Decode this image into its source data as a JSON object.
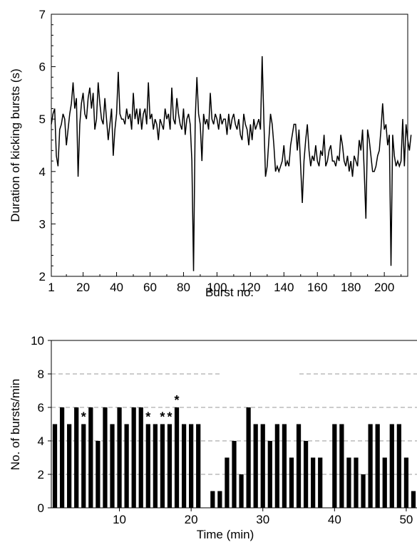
{
  "chart_data": [
    {
      "type": "line",
      "xlabel": "Burst no.",
      "ylabel": "Duration of kicking bursts (s)",
      "xlim": [
        1,
        214
      ],
      "ylim": [
        2,
        7
      ],
      "x_ticks": [
        "1",
        "20",
        "40",
        "60",
        "80",
        "100",
        "120",
        "140",
        "160",
        "180",
        "200"
      ],
      "y_ticks": [
        "2",
        "3",
        "4",
        "5",
        "6",
        "7"
      ],
      "grid": false,
      "series": [
        {
          "color": "#000000",
          "values": [
            4.9,
            5.1,
            5.2,
            4.3,
            4.1,
            4.8,
            4.9,
            5.1,
            5.0,
            4.5,
            4.8,
            5.1,
            5.3,
            5.7,
            5.2,
            5.4,
            3.9,
            4.9,
            5.3,
            5.5,
            5.1,
            5.0,
            5.4,
            5.6,
            5.2,
            5.5,
            4.8,
            5.0,
            5.7,
            5.3,
            5.0,
            4.9,
            5.4,
            5.0,
            4.6,
            4.9,
            5.2,
            4.3,
            4.8,
            5.1,
            5.9,
            5.1,
            5.0,
            5.0,
            4.9,
            5.2,
            5.0,
            5.1,
            4.8,
            5.5,
            5.0,
            5.2,
            4.9,
            5.2,
            4.8,
            5.1,
            5.2,
            4.9,
            5.7,
            5.0,
            5.1,
            4.8,
            5.0,
            4.9,
            4.6,
            5.0,
            4.9,
            4.8,
            5.2,
            5.0,
            5.1,
            4.8,
            5.6,
            5.0,
            4.9,
            5.4,
            5.1,
            4.9,
            4.8,
            5.2,
            4.7,
            5.0,
            5.1,
            4.9,
            4.2,
            2.1,
            5.0,
            5.8,
            5.1,
            4.9,
            4.2,
            5.1,
            4.9,
            5.0,
            4.8,
            5.5,
            5.0,
            4.9,
            5.1,
            5.0,
            4.8,
            5.1,
            4.9,
            5.0,
            5.0,
            4.7,
            5.1,
            4.8,
            5.0,
            5.1,
            4.9,
            4.8,
            5.0,
            4.7,
            4.6,
            5.1,
            4.9,
            4.8,
            4.5,
            4.9,
            4.6,
            5.0,
            4.8,
            4.9,
            5.0,
            4.8,
            6.2,
            5.0,
            3.9,
            4.1,
            4.6,
            5.1,
            4.9,
            4.5,
            4.0,
            4.1,
            4.0,
            4.1,
            4.2,
            4.5,
            4.1,
            4.2,
            4.1,
            4.5,
            4.7,
            4.9,
            4.9,
            4.4,
            4.8,
            4.1,
            3.4,
            4.2,
            4.6,
            4.9,
            4.4,
            4.1,
            4.3,
            4.2,
            4.5,
            4.2,
            4.1,
            4.4,
            4.3,
            4.7,
            4.1,
            4.2,
            4.4,
            4.5,
            4.2,
            4.2,
            4.1,
            4.3,
            4.2,
            4.7,
            4.5,
            4.2,
            4.1,
            4.3,
            4.0,
            4.2,
            3.9,
            4.3,
            4.2,
            4.1,
            4.6,
            4.4,
            4.8,
            4.0,
            3.1,
            4.8,
            4.6,
            4.3,
            4.0,
            4.0,
            4.1,
            4.3,
            4.4,
            4.8,
            5.3,
            4.8,
            4.9,
            4.5,
            4.7,
            2.2,
            4.7,
            4.3,
            4.1,
            4.2,
            4.1,
            4.2,
            5.0,
            4.1,
            4.9,
            4.6,
            4.4,
            4.7
          ]
        }
      ]
    },
    {
      "type": "bar",
      "xlabel": "Time (min)",
      "ylabel": "No. of bursts/min",
      "xlim": [
        0.5,
        51.5
      ],
      "ylim": [
        0,
        10
      ],
      "x_ticks": [
        "10",
        "20",
        "30",
        "40",
        "50"
      ],
      "y_ticks": [
        "0",
        "2",
        "4",
        "6",
        "8",
        "10"
      ],
      "grid": "dashed horizontal at 2, 4, 6, 8",
      "categories": [
        1,
        2,
        3,
        4,
        5,
        6,
        7,
        8,
        9,
        10,
        11,
        12,
        13,
        14,
        15,
        16,
        17,
        18,
        19,
        20,
        21,
        22,
        23,
        24,
        25,
        26,
        27,
        28,
        29,
        30,
        31,
        32,
        33,
        34,
        35,
        36,
        37,
        38,
        39,
        40,
        41,
        42,
        43,
        44,
        45,
        46,
        47,
        48,
        49,
        50,
        51
      ],
      "values": [
        5,
        6,
        5,
        6,
        5,
        6,
        4,
        6,
        5,
        6,
        5,
        6,
        6,
        5,
        5,
        5,
        5,
        6,
        5,
        5,
        5,
        0,
        1,
        1,
        3,
        4,
        2,
        6,
        5,
        5,
        4,
        5,
        5,
        3,
        5,
        4,
        3,
        3,
        0,
        5,
        5,
        3,
        3,
        2,
        5,
        5,
        3,
        5,
        5,
        3,
        1
      ],
      "annotations": [
        {
          "x": 5,
          "text": "*"
        },
        {
          "x": 14,
          "text": "*"
        },
        {
          "x": 16,
          "text": "*"
        },
        {
          "x": 17,
          "text": "*"
        },
        {
          "x": 18,
          "text": "*"
        }
      ]
    }
  ]
}
